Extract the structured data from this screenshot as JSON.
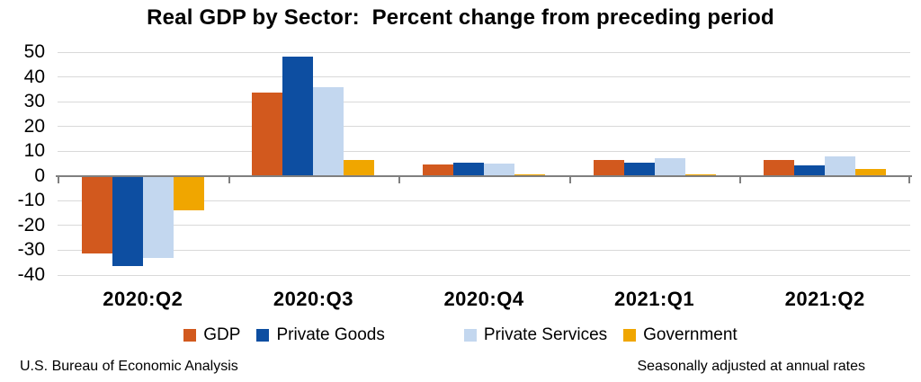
{
  "title": "Real GDP by Sector:  Percent change from preceding period",
  "footer": {
    "left": "U.S. Bureau of Economic Analysis",
    "right": "Seasonally adjusted at annual rates"
  },
  "colors": {
    "gridline": "#d9d9d9",
    "axis": "#7f7f7f",
    "text": "#000000"
  },
  "chart_data": {
    "type": "bar",
    "title": "Real GDP by Sector:  Percent change from preceding period",
    "categories": [
      "2020:Q2",
      "2020:Q3",
      "2020:Q4",
      "2021:Q1",
      "2021:Q2"
    ],
    "series": [
      {
        "name": "GDP",
        "color": "#d2591e",
        "values": [
          -31.2,
          33.8,
          4.5,
          6.3,
          6.5
        ]
      },
      {
        "name": "Private Goods",
        "color": "#0d4ea1",
        "values": [
          -36.5,
          48.3,
          5.2,
          5.5,
          4.3
        ]
      },
      {
        "name": "Private Services",
        "color": "#c3d7ef",
        "values": [
          -33.0,
          35.8,
          5.0,
          7.2,
          7.9
        ]
      },
      {
        "name": "Government",
        "color": "#f0a600",
        "values": [
          -14.0,
          6.5,
          0.8,
          0.8,
          3.0
        ]
      }
    ],
    "ylim": [
      -40,
      50
    ],
    "yticks": [
      50,
      40,
      30,
      20,
      10,
      0,
      -10,
      -20,
      -30,
      -40
    ],
    "grid": true,
    "legend_position": "bottom",
    "xlabel": "",
    "ylabel": ""
  }
}
